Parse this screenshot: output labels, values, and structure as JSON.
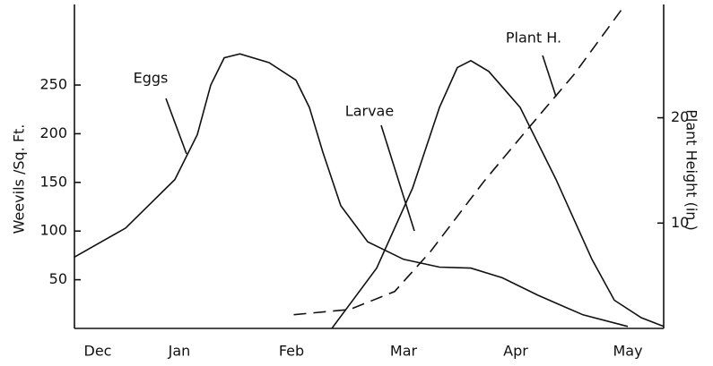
{
  "chart_data": {
    "type": "line",
    "xlabel": null,
    "ylabel": "Weevils /Sq. Ft.",
    "y2label": "Plant Height (in.)",
    "xlim": [
      0.064,
      5.32
    ],
    "xticks": [
      {
        "value": 0,
        "label": "Dec"
      },
      {
        "value": 1,
        "label": "Jan"
      },
      {
        "value": 2,
        "label": "Feb"
      },
      {
        "value": 3,
        "label": "Mar"
      },
      {
        "value": 4,
        "label": "Apr"
      },
      {
        "value": 5,
        "label": "May"
      }
    ],
    "ylim": [
      0,
      330
    ],
    "yticks": [
      50,
      100,
      150,
      200,
      250
    ],
    "y2lim": [
      0,
      30.5
    ],
    "y2ticks": [
      10,
      20
    ],
    "series": [
      {
        "name": "Eggs",
        "color": "#111111",
        "style": "solid",
        "x": [
          0.06,
          0.52,
          0.96,
          1.16,
          1.28,
          1.4,
          1.54,
          1.8,
          2.04,
          2.16,
          2.28,
          2.44,
          2.68,
          3.0,
          3.32,
          3.6,
          3.88,
          4.2,
          4.6,
          5.0
        ],
        "values": [
          73,
          103,
          153,
          199,
          250,
          278,
          282,
          273,
          255,
          227,
          181,
          126,
          89,
          71,
          63,
          62,
          52,
          34,
          14,
          2
        ]
      },
      {
        "name": "Larvae",
        "color": "#111111",
        "style": "solid",
        "x": [
          2.36,
          2.76,
          3.08,
          3.32,
          3.48,
          3.6,
          3.76,
          4.04,
          4.36,
          4.68,
          4.88,
          5.12,
          5.32
        ],
        "values": [
          0,
          62,
          144,
          227,
          268,
          275,
          264,
          227,
          153,
          71,
          29,
          11,
          2
        ]
      },
      {
        "name": "Plant H.",
        "color": "#111111",
        "style": "dashed",
        "axis": "y2",
        "x": [
          2.02,
          2.52,
          2.92,
          3.24,
          3.72,
          4.12,
          4.52,
          4.94
        ],
        "values": [
          1.3,
          1.8,
          3.5,
          7.3,
          14.0,
          19.1,
          24.1,
          30.2
        ]
      }
    ]
  }
}
